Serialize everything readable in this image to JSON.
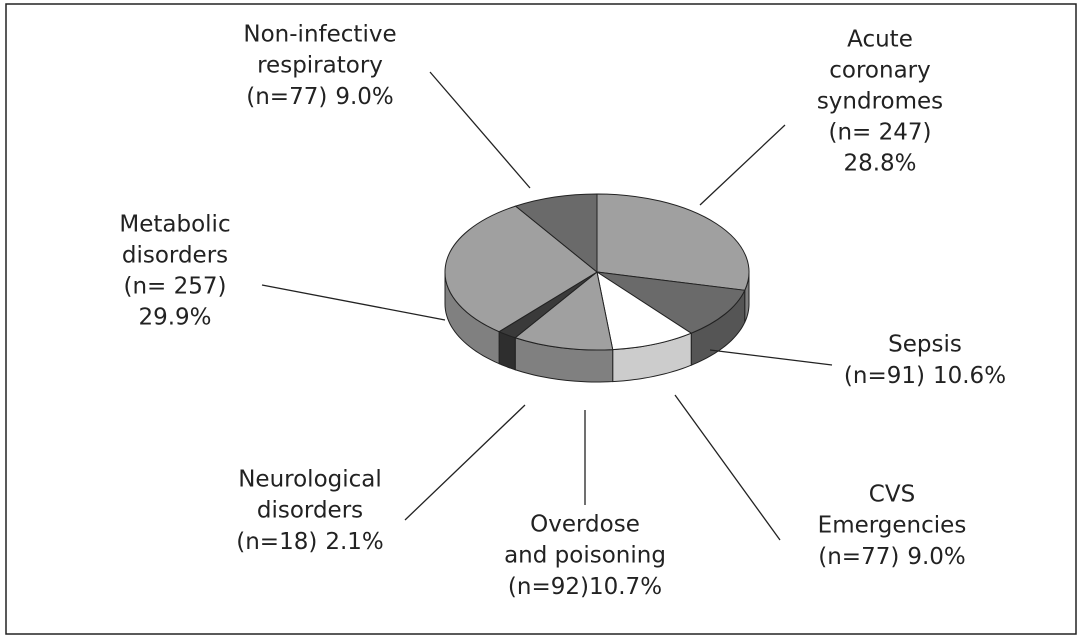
{
  "chart_data": {
    "type": "pie",
    "categories": [
      [
        "Acute",
        "coronary",
        "syndromes"
      ],
      [
        "Sepsis"
      ],
      [
        "CVS",
        "Emergencies"
      ],
      [
        "Overdose",
        "and poisoning"
      ],
      [
        "Neurological",
        "disorders"
      ],
      [
        "Metabolic",
        "disorders"
      ],
      [
        "Non-infective",
        "respiratory"
      ]
    ],
    "counts": [
      247,
      91,
      77,
      92,
      18,
      257,
      77
    ],
    "count_labels": [
      "(n= 247)",
      "(n=91)",
      "(n=77)",
      "(n=92)",
      "(n=18)",
      "(n= 257)",
      "(n=77)"
    ],
    "values": [
      28.8,
      10.6,
      9.0,
      10.7,
      2.1,
      29.9,
      9.0
    ],
    "value_labels": [
      "28.8%",
      "10.6%",
      "9.0%",
      "10.7%",
      "2.1%",
      "29.9%",
      "9.0%"
    ],
    "colors": [
      "#a0a0a0",
      "#6a6a6a",
      "#ffffff",
      "#a0a0a0",
      "#3a3a3a",
      "#a0a0a0",
      "#6a6a6a"
    ]
  }
}
